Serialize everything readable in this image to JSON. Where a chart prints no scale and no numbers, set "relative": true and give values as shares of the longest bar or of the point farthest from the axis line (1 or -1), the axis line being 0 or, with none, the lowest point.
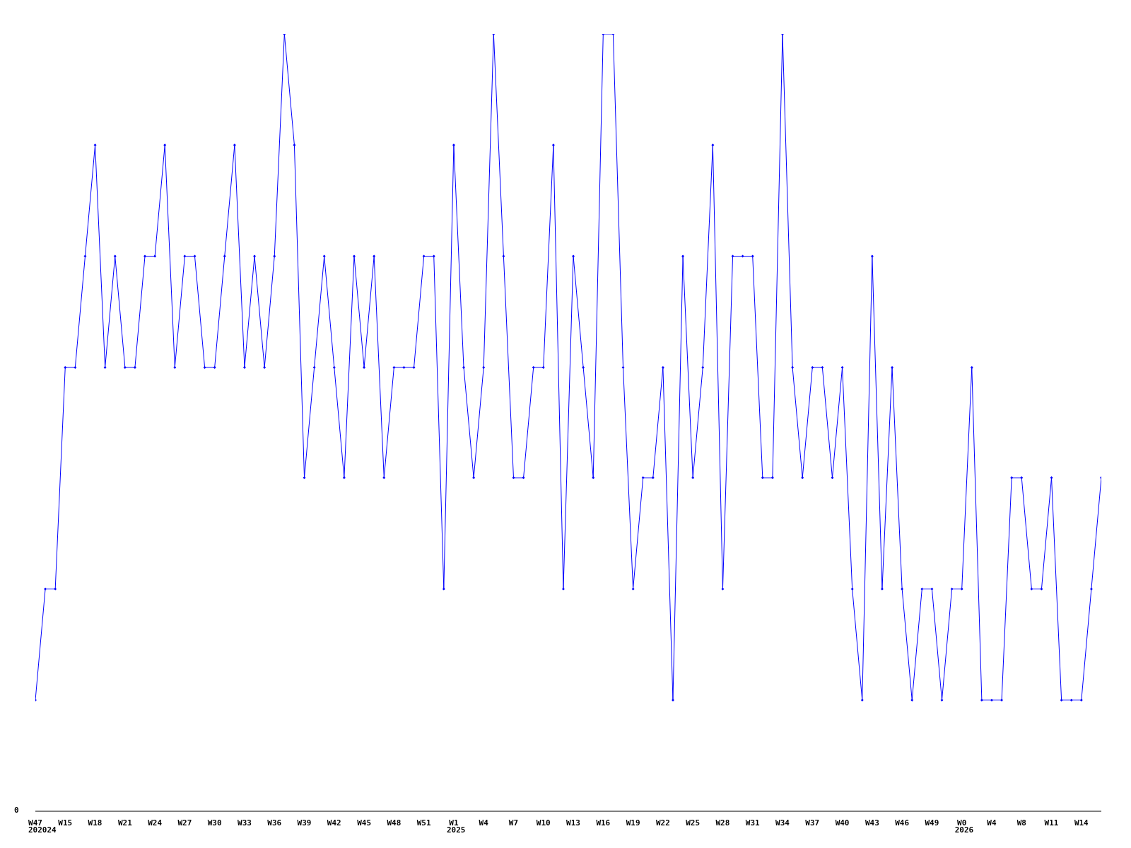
{
  "chart_data": {
    "type": "line",
    "relative": true,
    "color": "#0000ff",
    "marker": "diamond",
    "annotations": [
      "0",
      "202024",
      "2025",
      "2026"
    ],
    "categories": [
      "W47",
      null,
      null,
      "W15",
      null,
      null,
      "W18",
      null,
      null,
      "W21",
      null,
      null,
      "W24",
      null,
      null,
      "W27",
      null,
      null,
      "W30",
      null,
      null,
      "W33",
      null,
      null,
      "W36",
      null,
      null,
      "W39",
      null,
      null,
      "W42",
      null,
      null,
      "W45",
      null,
      null,
      "W48",
      null,
      null,
      "W51",
      null,
      null,
      "W1",
      null,
      null,
      "W4",
      null,
      null,
      "W7",
      null,
      null,
      "W10",
      null,
      null,
      "W13",
      null,
      null,
      "W16",
      null,
      null,
      "W19",
      null,
      null,
      "W22",
      null,
      null,
      "W25",
      null,
      null,
      "W28",
      null,
      null,
      "W31",
      null,
      null,
      "W34",
      null,
      null,
      "W37",
      null,
      null,
      "W40",
      null,
      null,
      "W43",
      null,
      null,
      "W46",
      null,
      null,
      "W49",
      null,
      null,
      "W0",
      null,
      null,
      "W4",
      null,
      null,
      "W8",
      null,
      null,
      "W11",
      null,
      null,
      "W14",
      null,
      null
    ],
    "values": [
      0.143,
      0.286,
      0.286,
      0.571,
      0.571,
      0.714,
      0.857,
      0.571,
      0.714,
      0.571,
      0.571,
      0.714,
      0.714,
      0.857,
      0.571,
      0.714,
      0.714,
      0.571,
      0.571,
      0.714,
      0.857,
      0.571,
      0.714,
      0.571,
      0.714,
      1,
      0.857,
      0.429,
      0.571,
      0.714,
      0.571,
      0.429,
      0.714,
      0.571,
      0.714,
      0.429,
      0.571,
      0.571,
      0.571,
      0.714,
      0.714,
      0.286,
      0.857,
      0.571,
      0.429,
      0.571,
      1,
      0.714,
      0.429,
      0.429,
      0.571,
      0.571,
      0.857,
      0.286,
      0.714,
      0.571,
      0.429,
      1,
      1,
      0.571,
      0.286,
      0.429,
      0.429,
      0.571,
      0.143,
      0.714,
      0.429,
      0.571,
      0.857,
      0.286,
      0.714,
      0.714,
      0.714,
      0.429,
      0.429,
      1,
      0.571,
      0.429,
      0.571,
      0.571,
      0.429,
      0.571,
      0.286,
      0.143,
      0.714,
      0.286,
      0.571,
      0.286,
      0.143,
      0.286,
      0.286,
      0.143,
      0.286,
      0.286,
      0.571,
      0.143,
      0.143,
      0.143,
      0.429,
      0.429,
      0.286,
      0.286,
      0.429,
      0.143,
      0.143,
      0.143,
      0.286,
      0.429
    ]
  }
}
